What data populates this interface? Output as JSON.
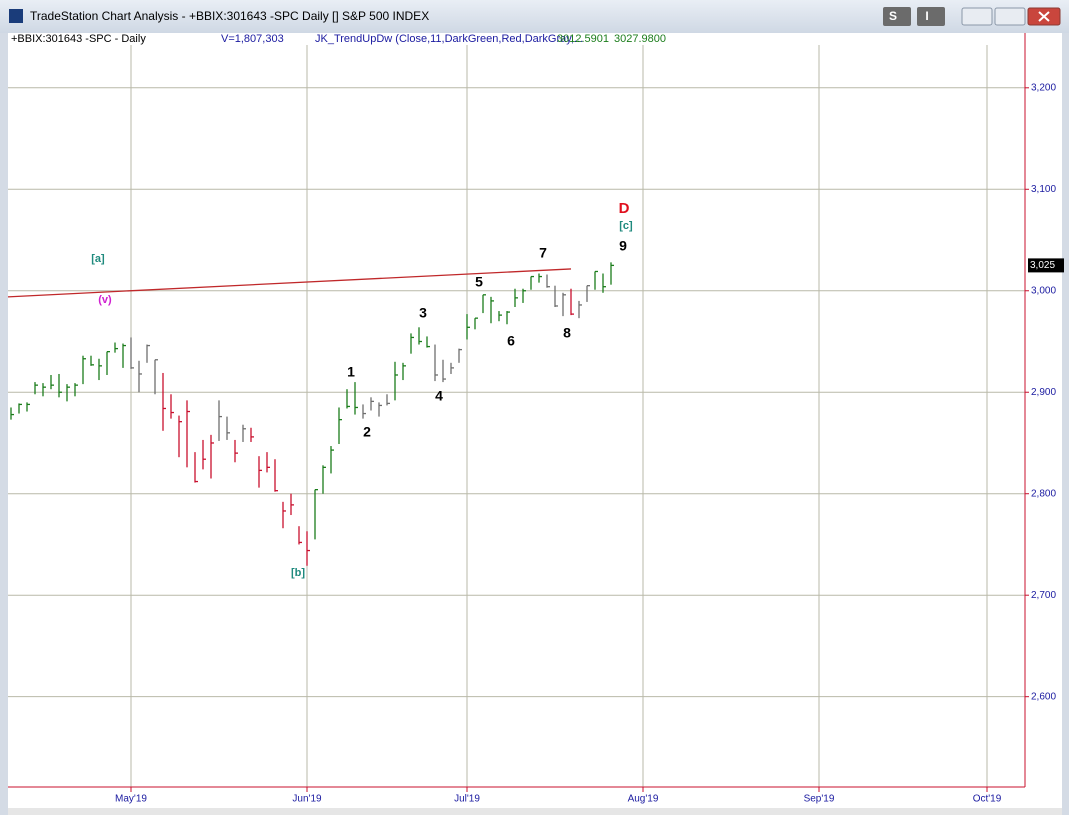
{
  "window": {
    "title": "TradeStation Chart Analysis - +BBIX:301643 -SPC Daily [] S&P 500 INDEX",
    "buttons": [
      "S",
      "I"
    ]
  },
  "chart_data": {
    "type": "ohlc",
    "symbol": "+BBIX:301643 -SPC - Daily",
    "volume": "V=1,807,303",
    "indicator": "JK_TrendUpDw (Close,11,DarkGreen,Red,DarkGray,...",
    "indicator_values": [
      "3012.5901",
      "3027.9800"
    ],
    "categories": [
      null,
      null,
      null,
      null,
      null,
      null,
      null,
      null,
      null,
      null,
      null,
      null,
      null,
      null,
      null,
      null,
      null,
      null,
      null,
      null,
      null,
      null,
      null,
      null,
      null,
      null,
      null,
      null,
      null,
      null,
      null,
      null,
      null,
      null,
      null,
      null,
      null,
      null,
      null,
      null,
      null,
      null,
      null,
      null,
      null,
      null,
      null,
      null,
      null,
      null,
      null,
      null,
      null,
      null,
      null,
      null,
      null,
      null,
      null,
      null,
      null,
      null,
      null,
      null,
      null,
      null,
      null,
      null,
      null,
      null,
      null,
      null,
      null,
      null,
      null,
      null
    ],
    "high": [
      2885,
      2889,
      2890,
      2910,
      2909,
      2917,
      2918,
      2908,
      2909,
      2936,
      2936,
      2933,
      2940,
      2949,
      2948,
      2954,
      2931,
      2947,
      2932,
      2919,
      2898,
      2877,
      2892,
      2841,
      2853,
      2858,
      2892,
      2876,
      2853,
      2868,
      2865,
      2837,
      2841,
      2834,
      2792,
      2800,
      2768,
      2763,
      2804,
      2828,
      2847,
      2885,
      2903,
      2910,
      2888,
      2895,
      2890,
      2898,
      2930,
      2929,
      2958,
      2964,
      2955,
      2947,
      2932,
      2929,
      2943,
      2977,
      2973,
      2996,
      2994,
      2980,
      2980,
      3002,
      3002,
      3014,
      3017,
      3016,
      3005,
      2998,
      3002,
      2990,
      3005,
      3019,
      3017,
      3028
    ],
    "low": [
      2873,
      2879,
      2881,
      2898,
      2896,
      2903,
      2895,
      2891,
      2896,
      2908,
      2926,
      2912,
      2917,
      2939,
      2924,
      2923,
      2900,
      2929,
      2898,
      2862,
      2874,
      2836,
      2826,
      2811,
      2824,
      2815,
      2852,
      2853,
      2831,
      2851,
      2851,
      2806,
      2821,
      2802,
      2766,
      2779,
      2750,
      2729,
      2755,
      2800,
      2820,
      2849,
      2884,
      2878,
      2874,
      2882,
      2876,
      2887,
      2892,
      2912,
      2938,
      2947,
      2944,
      2911,
      2910,
      2918,
      2929,
      2952,
      2962,
      2978,
      2968,
      2970,
      2967,
      2984,
      2988,
      3001,
      3008,
      3003,
      2984,
      2975,
      2976,
      2973,
      2989,
      3001,
      2998,
      3006
    ],
    "close": [
      2878,
      2888,
      2888,
      2907,
      2905,
      2907,
      2900,
      2905,
      2907,
      2933,
      2927,
      2926,
      2940,
      2943,
      2946,
      2924,
      2918,
      2946,
      2932,
      2884,
      2880,
      2871,
      2881,
      2812,
      2834,
      2850,
      2876,
      2860,
      2840,
      2864,
      2856,
      2823,
      2826,
      2803,
      2783,
      2789,
      2752,
      2744,
      2804,
      2826,
      2843,
      2873,
      2886,
      2885,
      2879,
      2891,
      2887,
      2889,
      2917,
      2926,
      2954,
      2950,
      2945,
      2917,
      2913,
      2924,
      2942,
      2964,
      2973,
      2996,
      2990,
      2976,
      2979,
      2993,
      3000,
      3014,
      3014,
      3004,
      2985,
      2996,
      2977,
      2986,
      3005,
      3019,
      3004,
      3025
    ],
    "trend": [
      "up",
      "up",
      "up",
      "up",
      "up",
      "up",
      "up",
      "up",
      "up",
      "up",
      "up",
      "up",
      "up",
      "up",
      "up",
      "neutral",
      "neutral",
      "neutral",
      "neutral",
      "down",
      "down",
      "down",
      "down",
      "down",
      "down",
      "down",
      "neutral",
      "neutral",
      "down",
      "neutral",
      "down",
      "down",
      "down",
      "down",
      "down",
      "down",
      "down",
      "down",
      "up",
      "up",
      "up",
      "up",
      "up",
      "up",
      "neutral",
      "neutral",
      "neutral",
      "neutral",
      "up",
      "up",
      "up",
      "up",
      "up",
      "neutral",
      "neutral",
      "neutral",
      "neutral",
      "up",
      "up",
      "up",
      "up",
      "up",
      "up",
      "up",
      "up",
      "up",
      "up",
      "neutral",
      "neutral",
      "neutral",
      "down",
      "neutral",
      "neutral",
      "up",
      "up",
      "up"
    ],
    "trend_colors": {
      "up": "#1b7d1b",
      "down": "#c8102e",
      "neutral": "#6e6e6e"
    },
    "trendline": {
      "x": [
        -0.375,
        70
      ],
      "y": [
        2994,
        3021.5
      ],
      "color": "#c0282a"
    },
    "annotations": [
      "[a]",
      "(v)",
      "[b]",
      "1",
      "2",
      "3",
      "4",
      "5",
      "6",
      "7",
      "8",
      "9",
      "[c]",
      "D"
    ],
    "last_price": {
      "value": 3025,
      "label": "3,025"
    },
    "xlim": [
      -0.375,
      126.75
    ],
    "xticks": [
      {
        "value": 15,
        "label": "May'19"
      },
      {
        "value": 37,
        "label": "Jun'19"
      },
      {
        "value": 57,
        "label": "Jul'19"
      },
      {
        "value": 79,
        "label": "Aug'19"
      },
      {
        "value": 101,
        "label": "Sep'19"
      },
      {
        "value": 122,
        "label": "Oct'19"
      }
    ],
    "ylim": [
      2511,
      3254
    ],
    "yticks": [
      {
        "value": 2600,
        "label": "2,600"
      },
      {
        "value": 2700,
        "label": "2,700"
      },
      {
        "value": 2800,
        "label": "2,800"
      },
      {
        "value": 2900,
        "label": "2,900"
      },
      {
        "value": 3000,
        "label": "3,000"
      },
      {
        "value": 3100,
        "label": "3,100"
      },
      {
        "value": 3200,
        "label": "3,200"
      }
    ],
    "grid": true
  }
}
